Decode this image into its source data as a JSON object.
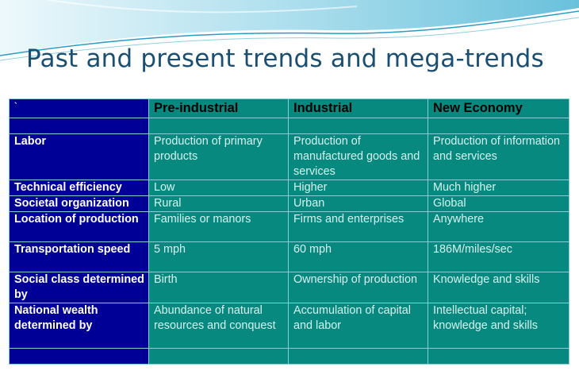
{
  "slide": {
    "title": "Past and present trends and mega-trends"
  },
  "table": {
    "corner_mark": "`",
    "columns": [
      "Pre-industrial",
      "Industrial",
      "New Economy"
    ],
    "rows": [
      {
        "label": "Labor",
        "values": [
          "Production of primary products",
          "Production of manufactured goods and services",
          "Production of information and services"
        ]
      },
      {
        "label": "Technical efficiency",
        "values": [
          "Low",
          "Higher",
          "Much higher"
        ]
      },
      {
        "label": "Societal organization",
        "values": [
          "Rural",
          "Urban",
          "Global"
        ]
      },
      {
        "label": "Location of production",
        "values": [
          "Families or manors",
          "Firms and enterprises",
          "Anywhere"
        ]
      },
      {
        "label": "Transportation speed",
        "values": [
          "5 mph",
          "60 mph",
          "186M/miles/sec"
        ]
      },
      {
        "label": "Social class determined by",
        "values": [
          "Birth",
          "Ownership of production",
          "Knowledge and skills"
        ]
      },
      {
        "label": "National wealth determined by",
        "values": [
          "Abundance of natural resources and conquest",
          "Accumulation of capital and labor",
          "Intellectual capital; knowledge and skills"
        ]
      }
    ]
  },
  "colors": {
    "label_column_bg": "#000096",
    "body_bg": "#07897f",
    "title_color": "#1b4f72"
  }
}
